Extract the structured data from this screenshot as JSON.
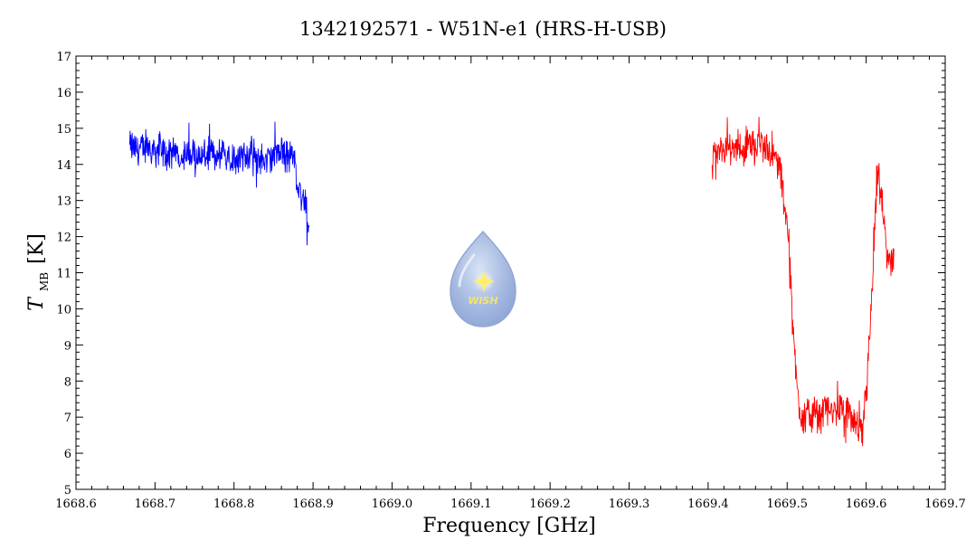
{
  "chart_data": {
    "type": "line",
    "title": "1342192571 - W51N-e1 (HRS-H-USB)",
    "xlabel": "Frequency [GHz]",
    "ylabel_main": "T",
    "ylabel_sub": "MB",
    "ylabel_unit": "[K]",
    "xlim": [
      1668.6,
      1669.7
    ],
    "ylim": [
      5,
      17
    ],
    "x_ticks": [
      "1668.6",
      "1668.7",
      "1668.8",
      "1668.9",
      "1669.0",
      "1669.1",
      "1669.2",
      "1669.3",
      "1669.4",
      "1669.5",
      "1669.6",
      "1669.7"
    ],
    "y_ticks": [
      "5",
      "6",
      "7",
      "8",
      "9",
      "10",
      "11",
      "12",
      "13",
      "14",
      "15",
      "16",
      "17"
    ],
    "grid": false,
    "logo": {
      "text": "WISH"
    },
    "series": [
      {
        "color": "#0000ff",
        "x": [
          1668.668,
          1668.68,
          1668.69,
          1668.7,
          1668.71,
          1668.72,
          1668.73,
          1668.74,
          1668.75,
          1668.76,
          1668.77,
          1668.78,
          1668.79,
          1668.8,
          1668.81,
          1668.82,
          1668.83,
          1668.84,
          1668.85,
          1668.86,
          1668.87,
          1668.875,
          1668.88,
          1668.885,
          1668.89,
          1668.895
        ],
        "y": [
          14.5,
          14.4,
          14.5,
          14.4,
          14.3,
          14.2,
          14.3,
          14.2,
          14.3,
          14.2,
          14.3,
          14.2,
          14.3,
          14.2,
          14.2,
          14.3,
          14.2,
          14.1,
          14.2,
          14.3,
          14.2,
          14.3,
          13.5,
          13.2,
          12.9,
          12.2
        ]
      },
      {
        "color": "#ff0000",
        "x": [
          1669.405,
          1669.42,
          1669.44,
          1669.46,
          1669.48,
          1669.49,
          1669.495,
          1669.5,
          1669.505,
          1669.51,
          1669.515,
          1669.52,
          1669.53,
          1669.54,
          1669.55,
          1669.56,
          1669.57,
          1669.58,
          1669.59,
          1669.595,
          1669.6,
          1669.605,
          1669.61,
          1669.615,
          1669.62,
          1669.625,
          1669.63,
          1669.635
        ],
        "y": [
          14.2,
          14.4,
          14.5,
          14.6,
          14.3,
          14.0,
          13.2,
          12.5,
          10.8,
          8.5,
          7.3,
          7.0,
          7.1,
          7.0,
          7.2,
          7.1,
          7.3,
          7.0,
          6.6,
          6.5,
          7.8,
          9.5,
          11.8,
          13.8,
          12.8,
          11.8,
          11.4,
          11.2
        ]
      }
    ]
  }
}
